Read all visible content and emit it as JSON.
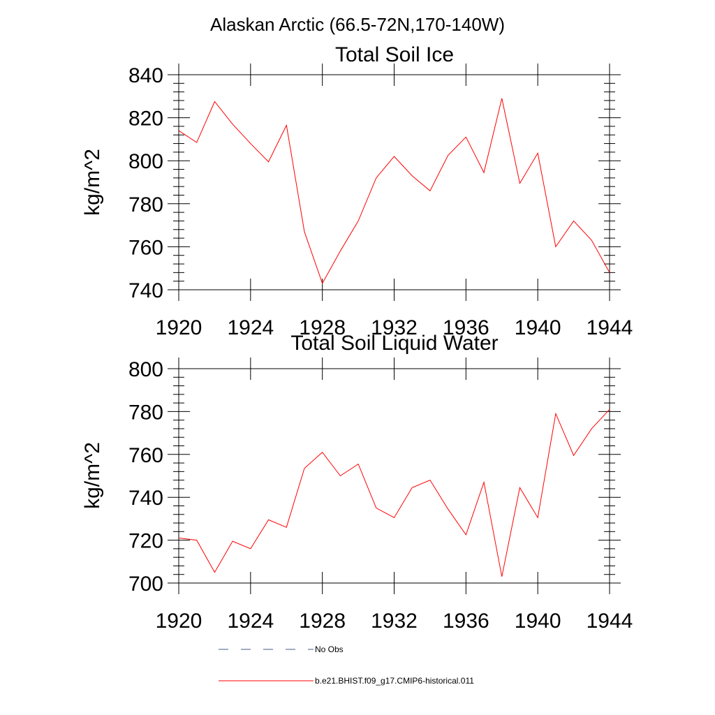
{
  "figure": {
    "title": "Alaskan Arctic (66.5-72N,170-140W)"
  },
  "chart_data": [
    {
      "type": "line",
      "title": "Total Soil Ice",
      "xlabel": "",
      "ylabel": "kg/m^2",
      "xlim": [
        1920,
        1944
      ],
      "ylim": [
        740,
        840
      ],
      "xticks": [
        1920,
        1924,
        1928,
        1932,
        1936,
        1940,
        1944
      ],
      "yticks": [
        740,
        760,
        780,
        800,
        820,
        840
      ],
      "grid": false,
      "x": [
        1920,
        1921,
        1922,
        1923,
        1924,
        1925,
        1926,
        1927,
        1928,
        1929,
        1930,
        1931,
        1932,
        1933,
        1934,
        1935,
        1936,
        1937,
        1938,
        1939,
        1940,
        1941,
        1942,
        1943,
        1944
      ],
      "series": [
        {
          "name": "b.e21.BHIST.f09_g17.CMIP6-historical.011",
          "color": "#ff0000",
          "values": [
            814,
            808.5,
            827.5,
            817,
            808,
            799.5,
            816.5,
            767,
            743,
            758,
            772,
            792,
            802,
            793,
            786,
            802.5,
            811,
            794.5,
            829,
            789.5,
            803.5,
            760,
            772,
            763,
            748
          ]
        }
      ]
    },
    {
      "type": "line",
      "title": "Total Soil Liquid Water",
      "xlabel": "",
      "ylabel": "kg/m^2",
      "xlim": [
        1920,
        1944
      ],
      "ylim": [
        700,
        800
      ],
      "xticks": [
        1920,
        1924,
        1928,
        1932,
        1936,
        1940,
        1944
      ],
      "yticks": [
        700,
        720,
        740,
        760,
        780,
        800
      ],
      "grid": false,
      "x": [
        1920,
        1921,
        1922,
        1923,
        1924,
        1925,
        1926,
        1927,
        1928,
        1929,
        1930,
        1931,
        1932,
        1933,
        1934,
        1935,
        1936,
        1937,
        1938,
        1939,
        1940,
        1941,
        1942,
        1943,
        1944
      ],
      "series": [
        {
          "name": "b.e21.BHIST.f09_g17.CMIP6-historical.011",
          "color": "#ff0000",
          "values": [
            721,
            720,
            705,
            719.5,
            716,
            729.5,
            726,
            753.5,
            761,
            750,
            755.5,
            735,
            730.5,
            744.5,
            748,
            734.5,
            722.5,
            747,
            703,
            744.5,
            730.5,
            779,
            759.5,
            772,
            781
          ]
        }
      ]
    }
  ],
  "legend": {
    "placement": "bottom",
    "items": [
      {
        "label": "No Obs",
        "color": "#4a5a8a",
        "style": "dashed"
      },
      {
        "label": "b.e21.BHIST.f09_g17.CMIP6-historical.011",
        "color": "#ff0000",
        "style": "solid"
      }
    ]
  }
}
